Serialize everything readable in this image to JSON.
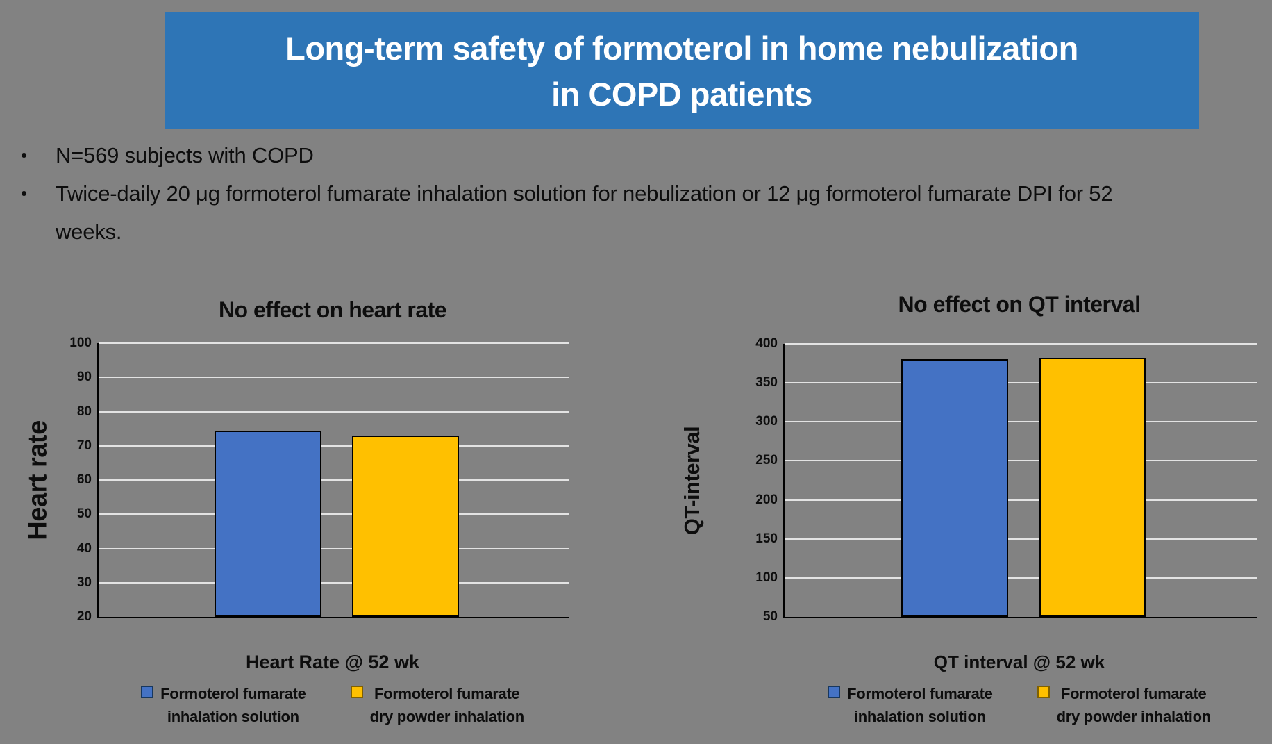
{
  "banner": {
    "line1": "Long-term safety of formoterol in home nebulization",
    "line2": "in COPD patients",
    "background": "#2E75B6",
    "text_color": "#FFFFFF"
  },
  "bullets": [
    "N=569 subjects with COPD",
    "Twice-daily 20 μg formoterol fumarate inhalation solution for nebulization or 12 μg formoterol fumarate DPI for 52 weeks."
  ],
  "colors": {
    "slide_background": "#828282",
    "bar_blue": "#4472C4",
    "bar_gold": "#FFC000",
    "gridline": "#E3E3E3",
    "axis": "#000000"
  },
  "legend": {
    "entries": [
      {
        "line1": "Formoterol fumarate",
        "line2": "inhalation solution",
        "color": "#4472C4",
        "border": "#17375E"
      },
      {
        "line1": "Formoterol fumarate",
        "line2": "dry powder inhalation",
        "color": "#FFC000",
        "border": "#806000"
      }
    ]
  },
  "chart_data": [
    {
      "type": "bar",
      "title": "No effect on heart rate",
      "ylabel": "Heart rate",
      "xlabel": "Heart Rate @ 52 wk",
      "categories": [
        "Heart Rate @ 52 wk"
      ],
      "series": [
        {
          "name": "Formoterol fumarate inhalation solution",
          "values": [
            74.5
          ],
          "color": "#4472C4"
        },
        {
          "name": "Formoterol fumarate dry powder inhalation",
          "values": [
            73
          ],
          "color": "#FFC000"
        }
      ],
      "ylim": [
        20,
        100
      ],
      "yticks": [
        20,
        30,
        40,
        50,
        60,
        70,
        80,
        90,
        100
      ],
      "grid": true,
      "legend_position": "bottom"
    },
    {
      "type": "bar",
      "title": "No effect on QT interval",
      "ylabel": "QT-interval",
      "xlabel": "QT interval @ 52 wk",
      "categories": [
        "QT interval @ 52 wk"
      ],
      "series": [
        {
          "name": "Formoterol fumarate inhalation solution",
          "values": [
            380
          ],
          "color": "#4472C4"
        },
        {
          "name": "Formoterol fumarate dry powder inhalation",
          "values": [
            382
          ],
          "color": "#FFC000"
        }
      ],
      "ylim": [
        50,
        400
      ],
      "yticks": [
        50,
        100,
        150,
        200,
        250,
        300,
        350,
        400
      ],
      "grid": true,
      "legend_position": "bottom"
    }
  ]
}
